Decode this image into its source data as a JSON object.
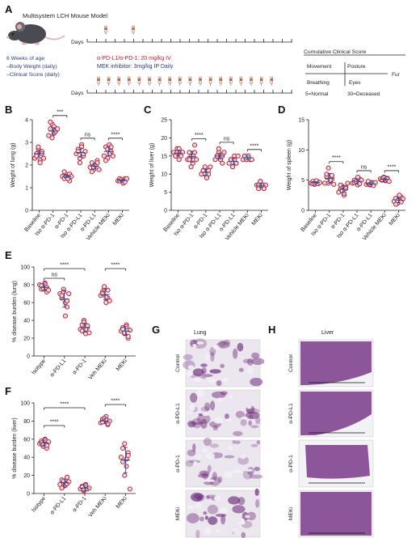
{
  "panelA": {
    "letter": "A",
    "title": "Multisystem LCH Mouse Model",
    "days_label_1": "Days",
    "days_label_2": "Days",
    "age_line": "6 Weeks of age",
    "weight_line": "–Body Weight (daily)",
    "score_line": "–Clinical Score (daily)",
    "antibody_line": "α-PD-L1/α-PD-1: 20 mg/kg IV",
    "mek_line": "MEK inhibitor: 3mg/kg IP Daily",
    "cumulative_title": "Cumulative Clinical Score",
    "movement": "Movement",
    "posture": "Posture",
    "fur": "Fur",
    "breathing": "Breathing",
    "eyes": "Eyes",
    "normal": "5=Normal",
    "deceased": "30=Deceased"
  },
  "colors": {
    "dot_stroke": "#b5162c",
    "dot_fill": "#f6d7dc",
    "mean": "#1f55a0",
    "he_stain": "#6b2a78",
    "antibody_text": "#c0192d",
    "mek_text": "#2a3d7a"
  },
  "chart_data": [
    {
      "id": "B",
      "type": "scatter",
      "ylabel": "Weight of lung (g)",
      "ylim": [
        0,
        4
      ],
      "yticks": [
        0,
        1,
        2,
        3,
        4
      ],
      "categories": [
        "Baseline",
        "Iso α-PD-1",
        "α-PD-1",
        "Iso α-PD-L1",
        "α-PD-L1",
        "Vehicle MEKi",
        "MEKi"
      ],
      "values": [
        [
          2.3,
          2.5,
          2.7,
          2.2,
          2.6,
          2.4,
          2.8,
          2.1,
          2.5,
          2.3
        ],
        [
          3.3,
          3.6,
          3.8,
          3.4,
          3.5,
          3.9,
          3.2,
          3.7,
          3.5,
          3.6
        ],
        [
          1.5,
          1.4,
          1.6,
          1.5,
          1.3,
          1.7,
          1.5,
          1.4,
          1.6,
          1.5
        ],
        [
          2.5,
          2.7,
          2.3,
          2.9,
          2.4,
          2.6,
          2.1,
          2.8,
          2.5,
          2.6
        ],
        [
          1.9,
          2.1,
          1.8,
          2.0,
          2.2,
          1.7,
          1.9,
          2.0,
          2.1,
          1.8
        ],
        [
          2.4,
          2.8,
          2.3,
          2.9,
          2.6,
          2.2,
          2.7,
          2.5,
          2.8,
          2.4
        ],
        [
          1.3,
          1.4,
          1.3,
          1.2,
          1.4,
          1.3,
          1.35,
          1.3,
          1.25,
          1.4
        ]
      ],
      "means": [
        2.5,
        3.5,
        1.5,
        2.55,
        1.95,
        2.6,
        1.32
      ],
      "sems": [
        0.15,
        0.15,
        0.05,
        0.2,
        0.12,
        0.2,
        0.03
      ],
      "brackets": [
        {
          "from": 1,
          "to": 2,
          "label": "***"
        },
        {
          "from": 3,
          "to": 4,
          "label": "ns"
        },
        {
          "from": 5,
          "to": 6,
          "label": "****"
        }
      ]
    },
    {
      "id": "C",
      "type": "scatter",
      "ylabel": "Weight of liver (g)",
      "ylim": [
        0,
        25
      ],
      "yticks": [
        0,
        5,
        10,
        15,
        20,
        25
      ],
      "categories": [
        "Baseline",
        "Iso α-PD-1",
        "α-PD-1",
        "Iso α-PD-L1",
        "α-PD-L1",
        "Vehicle MEKi",
        "MEKi"
      ],
      "values": [
        [
          16,
          15,
          17,
          14,
          16,
          15,
          16,
          17,
          15,
          16
        ],
        [
          14,
          16,
          15,
          13,
          18,
          14,
          12,
          15,
          16,
          14
        ],
        [
          10,
          11,
          12,
          9,
          10,
          11,
          10,
          9,
          11,
          12
        ],
        [
          14,
          15,
          16,
          14,
          13,
          15,
          17,
          14,
          15,
          16
        ],
        [
          13,
          14,
          12,
          15,
          13,
          14,
          12,
          14,
          13,
          15
        ],
        [
          14,
          15,
          14,
          15,
          14,
          15,
          14,
          15,
          14,
          14
        ],
        [
          7,
          6,
          8,
          7,
          6,
          7,
          8,
          7,
          6,
          7
        ]
      ],
      "means": [
        15.8,
        14.8,
        10.5,
        15.0,
        13.5,
        14.5,
        6.9
      ],
      "sems": [
        0.8,
        1.5,
        0.8,
        0.8,
        0.8,
        0.5,
        0.6
      ],
      "brackets": [
        {
          "from": 1,
          "to": 2,
          "label": "****"
        },
        {
          "from": 3,
          "to": 4,
          "label": "ns"
        },
        {
          "from": 5,
          "to": 6,
          "label": "****"
        }
      ]
    },
    {
      "id": "D",
      "type": "scatter",
      "ylabel": "Weight of spleen (g)",
      "ylim": [
        0,
        15
      ],
      "yticks": [
        0,
        5,
        10,
        15
      ],
      "categories": [
        "Baseline",
        "Iso α-PD-1",
        "α-PD-1",
        "Iso α-PD-L1",
        "α-PD-L1",
        "Vehicle MEKi",
        "MEKi"
      ],
      "values": [
        [
          4.5,
          4.8,
          4.3,
          4.6,
          4.7,
          4.4,
          4.5,
          4.9,
          4.4,
          4.6
        ],
        [
          4.5,
          5.5,
          7,
          4.8,
          5.2,
          6,
          4.5,
          5,
          5.8,
          4.3
        ],
        [
          3,
          3.5,
          4,
          2.5,
          3.8,
          4.2,
          3.2,
          2.8,
          3.6,
          4.5
        ],
        [
          4.5,
          5,
          4.8,
          4.2,
          5.2,
          4.6,
          4.8,
          5.5,
          4.4,
          5
        ],
        [
          4.3,
          4.5,
          4.2,
          4.6,
          4.4,
          4.8,
          4.3,
          4.5,
          4.1,
          4.6
        ],
        [
          5.2,
          5,
          5.5,
          4.9,
          5.3,
          5.1,
          5.4,
          5,
          5.2,
          4.8
        ],
        [
          1.5,
          2,
          1.2,
          1.8,
          2.2,
          1,
          1.6,
          2.5,
          1.4,
          1.9
        ]
      ],
      "means": [
        4.6,
        5.3,
        3.5,
        4.8,
        4.4,
        5.15,
        1.7
      ],
      "sems": [
        0.15,
        0.8,
        0.6,
        0.4,
        0.2,
        0.2,
        0.4
      ],
      "brackets": [
        {
          "from": 1,
          "to": 2,
          "label": "****"
        },
        {
          "from": 3,
          "to": 4,
          "label": "ns"
        },
        {
          "from": 5,
          "to": 6,
          "label": "****"
        }
      ]
    },
    {
      "id": "E",
      "type": "scatter",
      "ylabel": "% disease burden (lung)",
      "ylim": [
        0,
        100
      ],
      "yticks": [
        0,
        20,
        40,
        60,
        80,
        100
      ],
      "categories": [
        "Isotype",
        "α-PD-L1",
        "α-PD-1",
        "Veh MEKi",
        "MEKi"
      ],
      "values": [
        [
          80,
          75,
          78,
          82,
          72,
          79,
          76,
          81,
          77,
          74
        ],
        [
          70,
          65,
          75,
          60,
          55,
          68,
          72,
          45,
          62,
          70
        ],
        [
          30,
          35,
          40,
          25,
          32,
          28,
          38,
          30,
          34,
          26
        ],
        [
          68,
          72,
          75,
          60,
          65,
          70,
          78,
          66,
          74,
          62
        ],
        [
          28,
          32,
          25,
          35,
          20,
          30,
          26,
          33,
          22,
          29
        ]
      ],
      "means": [
        77,
        64,
        32,
        69,
        28
      ],
      "sems": [
        4,
        9,
        5,
        6,
        5
      ],
      "brackets": [
        {
          "from": 0,
          "to": 1,
          "label": "ns"
        },
        {
          "from": 0,
          "to": 2,
          "label": "****"
        },
        {
          "from": 3,
          "to": 4,
          "label": "****"
        }
      ]
    },
    {
      "id": "F",
      "type": "scatter",
      "ylabel": "% disease burden (liver)",
      "ylim": [
        0,
        100
      ],
      "yticks": [
        0,
        20,
        40,
        60,
        80,
        100
      ],
      "categories": [
        "Isotype",
        "α-PD-L1",
        "α-PD-1",
        "Veh MEKi",
        "MEKi"
      ],
      "values": [
        [
          55,
          58,
          52,
          60,
          50,
          56,
          54,
          59,
          53,
          57
        ],
        [
          10,
          15,
          8,
          12,
          18,
          6,
          14,
          9,
          11,
          13
        ],
        [
          5,
          8,
          3,
          10,
          6,
          7,
          4,
          9,
          5,
          6
        ],
        [
          78,
          82,
          80,
          85,
          76,
          79,
          83,
          81,
          77,
          80
        ],
        [
          40,
          50,
          55,
          30,
          45,
          35,
          20,
          38,
          42,
          5
        ]
      ],
      "means": [
        56,
        12,
        6,
        80,
        37
      ],
      "sems": [
        3,
        4,
        3,
        3,
        14
      ],
      "brackets": [
        {
          "from": 0,
          "to": 1,
          "label": "****"
        },
        {
          "from": 0,
          "to": 2,
          "label": "****"
        },
        {
          "from": 3,
          "to": 4,
          "label": "****"
        }
      ]
    }
  ],
  "panelG": {
    "letter": "G",
    "title": "Lung",
    "rows": [
      "Control",
      "α-PD-L1",
      "α-PD-1",
      "MEKi"
    ]
  },
  "panelH": {
    "letter": "H",
    "title": "Liver",
    "rows": [
      "Control",
      "α-PD-L1",
      "α-PD-1",
      "MEKi"
    ]
  }
}
